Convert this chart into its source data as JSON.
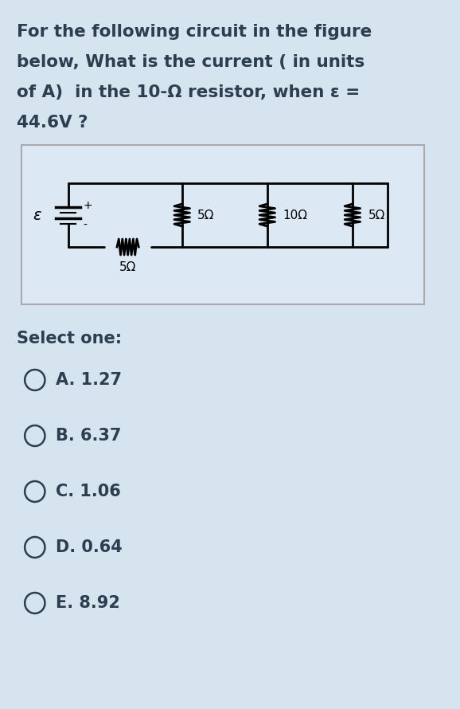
{
  "title_line1": "For the following circuit in the figure",
  "title_line2": "below, What is the current ( in units",
  "title_line3": "of A)  in the 10-Ω resistor, when ε =",
  "title_line4": "44.6V ?",
  "bg_color": "#d6e4f0",
  "circuit_bg": "#e8f0f7",
  "text_color": "#2c3e50",
  "select_label": "Select one:",
  "options": [
    "A. 1.27",
    "B. 6.37",
    "C. 1.06",
    "D. 0.64",
    "E. 8.92"
  ],
  "circuit_labels": {
    "epsilon": "ε",
    "r1": "5Ω",
    "r2": "5Ω",
    "r3": "10Ω",
    "r4": "5Ω",
    "plus": "+",
    "minus": "-"
  }
}
